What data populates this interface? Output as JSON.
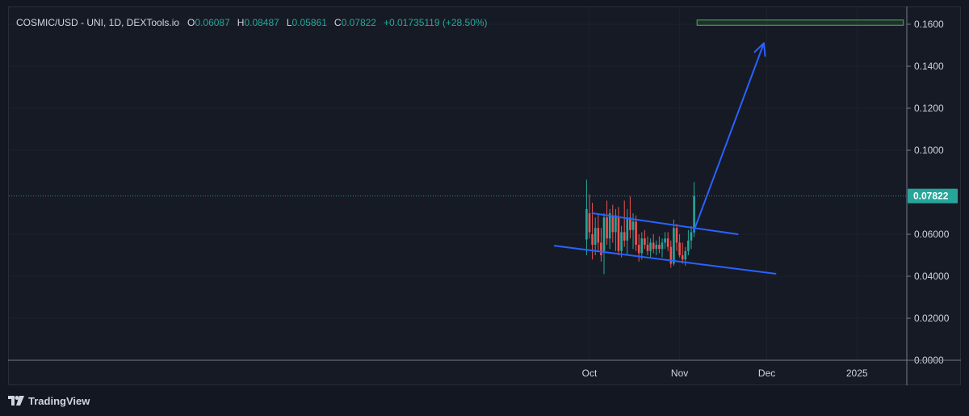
{
  "legend": {
    "symbol": "COSMIC/USD - UNI, 1D, DEXTools.io",
    "open_key": "O",
    "open": "0.06087",
    "high_key": "H",
    "high": "0.08487",
    "low_key": "L",
    "low": "0.05861",
    "close_key": "C",
    "close": "0.07822",
    "change": "+0.01735119 (+28.50%)"
  },
  "price_label": "0.07822",
  "branding": "TradingView",
  "colors": {
    "background": "#131722",
    "up": "#26a69a",
    "down": "#ef5350",
    "trendline": "#2962ff",
    "grid": "#1e222d",
    "price_tag": "#26a69a",
    "target_box": "#4caf50"
  },
  "icons": {
    "logo": "tradingview-logo-icon"
  },
  "chart_data": {
    "type": "candlestick",
    "title": "COSMIC/USD - UNI, 1D, DEXTools.io",
    "ylim": [
      0,
      0.17
    ],
    "y_ticks": [
      "0.1600",
      "0.1400",
      "0.1200",
      "0.1000",
      "0.06000",
      "0.04000",
      "0.02000",
      "0.0000"
    ],
    "x_ticks": [
      "Oct",
      "Nov",
      "Dec",
      "2025"
    ],
    "last_price": 0.07822,
    "grid": true,
    "candles": [
      {
        "d": "2024-09-30",
        "o": 0.0575,
        "h": 0.086,
        "l": 0.05,
        "c": 0.072
      },
      {
        "d": "2024-10-01",
        "o": 0.07,
        "h": 0.079,
        "l": 0.058,
        "c": 0.061
      },
      {
        "d": "2024-10-02",
        "o": 0.06,
        "h": 0.075,
        "l": 0.048,
        "c": 0.055
      },
      {
        "d": "2024-10-03",
        "o": 0.055,
        "h": 0.068,
        "l": 0.05,
        "c": 0.063
      },
      {
        "d": "2024-10-04",
        "o": 0.063,
        "h": 0.07,
        "l": 0.052,
        "c": 0.056
      },
      {
        "d": "2024-10-05",
        "o": 0.056,
        "h": 0.063,
        "l": 0.047,
        "c": 0.05
      },
      {
        "d": "2024-10-06",
        "o": 0.052,
        "h": 0.07,
        "l": 0.041,
        "c": 0.068
      },
      {
        "d": "2024-10-07",
        "o": 0.068,
        "h": 0.076,
        "l": 0.055,
        "c": 0.058
      },
      {
        "d": "2024-10-08",
        "o": 0.058,
        "h": 0.072,
        "l": 0.053,
        "c": 0.07
      },
      {
        "d": "2024-10-09",
        "o": 0.069,
        "h": 0.074,
        "l": 0.056,
        "c": 0.061
      },
      {
        "d": "2024-10-10",
        "o": 0.061,
        "h": 0.072,
        "l": 0.052,
        "c": 0.069
      },
      {
        "d": "2024-10-11",
        "o": 0.068,
        "h": 0.073,
        "l": 0.05,
        "c": 0.052
      },
      {
        "d": "2024-10-12",
        "o": 0.052,
        "h": 0.064,
        "l": 0.049,
        "c": 0.061
      },
      {
        "d": "2024-10-13",
        "o": 0.061,
        "h": 0.076,
        "l": 0.054,
        "c": 0.057
      },
      {
        "d": "2024-10-14",
        "o": 0.057,
        "h": 0.072,
        "l": 0.05,
        "c": 0.068
      },
      {
        "d": "2024-10-15",
        "o": 0.068,
        "h": 0.078,
        "l": 0.058,
        "c": 0.062
      },
      {
        "d": "2024-10-16",
        "o": 0.062,
        "h": 0.07,
        "l": 0.053,
        "c": 0.066
      },
      {
        "d": "2024-10-17",
        "o": 0.066,
        "h": 0.069,
        "l": 0.052,
        "c": 0.055
      },
      {
        "d": "2024-10-18",
        "o": 0.055,
        "h": 0.06,
        "l": 0.047,
        "c": 0.051
      },
      {
        "d": "2024-10-19",
        "o": 0.051,
        "h": 0.061,
        "l": 0.048,
        "c": 0.058
      },
      {
        "d": "2024-10-20",
        "o": 0.058,
        "h": 0.062,
        "l": 0.053,
        "c": 0.055
      },
      {
        "d": "2024-10-21",
        "o": 0.055,
        "h": 0.059,
        "l": 0.05,
        "c": 0.052
      },
      {
        "d": "2024-10-22",
        "o": 0.052,
        "h": 0.058,
        "l": 0.049,
        "c": 0.056
      },
      {
        "d": "2024-10-23",
        "o": 0.056,
        "h": 0.06,
        "l": 0.051,
        "c": 0.053
      },
      {
        "d": "2024-10-24",
        "o": 0.053,
        "h": 0.057,
        "l": 0.05,
        "c": 0.055
      },
      {
        "d": "2024-10-25",
        "o": 0.055,
        "h": 0.059,
        "l": 0.051,
        "c": 0.053
      },
      {
        "d": "2024-10-26",
        "o": 0.053,
        "h": 0.058,
        "l": 0.049,
        "c": 0.056
      },
      {
        "d": "2024-10-27",
        "o": 0.056,
        "h": 0.061,
        "l": 0.053,
        "c": 0.058
      },
      {
        "d": "2024-10-28",
        "o": 0.058,
        "h": 0.061,
        "l": 0.052,
        "c": 0.054
      },
      {
        "d": "2024-10-29",
        "o": 0.054,
        "h": 0.057,
        "l": 0.044,
        "c": 0.046
      },
      {
        "d": "2024-10-30",
        "o": 0.046,
        "h": 0.067,
        "l": 0.045,
        "c": 0.063
      },
      {
        "d": "2024-10-31",
        "o": 0.063,
        "h": 0.065,
        "l": 0.052,
        "c": 0.056
      },
      {
        "d": "2024-11-01",
        "o": 0.056,
        "h": 0.06,
        "l": 0.049,
        "c": 0.05
      },
      {
        "d": "2024-11-02",
        "o": 0.05,
        "h": 0.056,
        "l": 0.046,
        "c": 0.048
      },
      {
        "d": "2024-11-03",
        "o": 0.048,
        "h": 0.054,
        "l": 0.045,
        "c": 0.052
      },
      {
        "d": "2024-11-04",
        "o": 0.052,
        "h": 0.062,
        "l": 0.05,
        "c": 0.057
      },
      {
        "d": "2024-11-05",
        "o": 0.057,
        "h": 0.064,
        "l": 0.053,
        "c": 0.061
      },
      {
        "d": "2024-11-06",
        "o": 0.06087,
        "h": 0.08487,
        "l": 0.05861,
        "c": 0.07822
      }
    ],
    "annotations": [
      {
        "type": "trendline",
        "name": "upper-channel",
        "from": {
          "date": "2024-10-02",
          "price": 0.07
        },
        "to": {
          "date": "2024-11-21",
          "price": 0.06
        }
      },
      {
        "type": "trendline",
        "name": "lower-channel",
        "from": {
          "date": "2024-09-19",
          "price": 0.0545
        },
        "to": {
          "date": "2024-12-04",
          "price": 0.0412
        }
      },
      {
        "type": "arrow",
        "name": "target-arrow",
        "from": {
          "date": "2024-11-06",
          "price": 0.062
        },
        "to": {
          "date": "2024-11-30",
          "price": 0.151
        }
      },
      {
        "type": "rectangle",
        "name": "target-zone",
        "from": {
          "date": "2024-11-07",
          "price": 0.162
        },
        "to": {
          "date": "2025-01-17",
          "price": 0.1595
        }
      }
    ]
  }
}
